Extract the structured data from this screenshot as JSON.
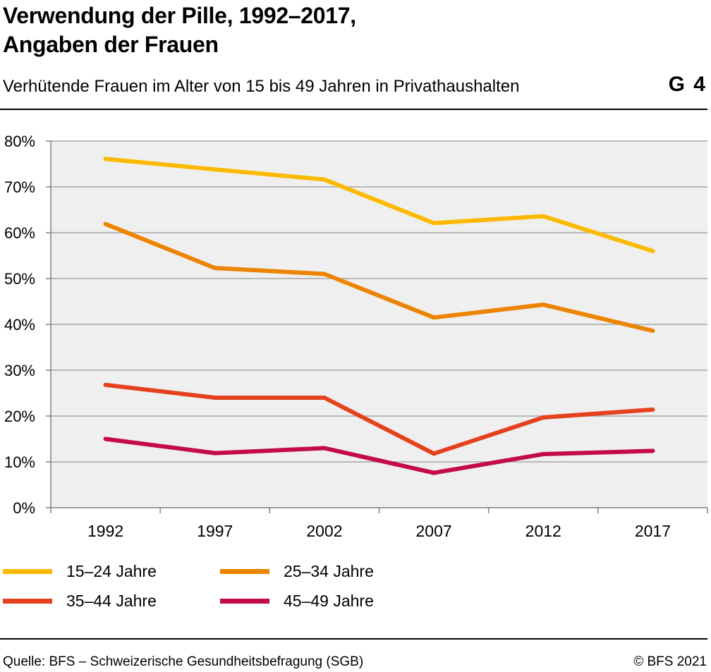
{
  "header": {
    "title_line1": "Verwendung der Pille, 1992–2017,",
    "title_line2": "Angaben der Frauen",
    "subtitle": "Verhütende Frauen im Alter von 15 bis 49 Jahren in Privathaushalten",
    "chart_id": "G 4"
  },
  "chart_data": {
    "type": "line",
    "x": [
      "1992",
      "1997",
      "2002",
      "2007",
      "2012",
      "2017"
    ],
    "ylim": [
      0,
      80
    ],
    "y_ticks": [
      "0%",
      "10%",
      "20%",
      "30%",
      "40%",
      "50%",
      "60%",
      "70%",
      "80%"
    ],
    "grid": true,
    "legend_position": "bottom",
    "series": [
      {
        "name": "15–24 Jahre",
        "color": "#FBBA00",
        "values": [
          76.1,
          73.8,
          71.6,
          62.1,
          63.6,
          56.0
        ]
      },
      {
        "name": "25–34 Jahre",
        "color": "#EC8400",
        "values": [
          61.9,
          52.3,
          51.0,
          41.5,
          44.3,
          38.6
        ]
      },
      {
        "name": "35–44 Jahre",
        "color": "#E6411E",
        "values": [
          26.8,
          24.0,
          24.0,
          11.8,
          19.7,
          21.4
        ]
      },
      {
        "name": "45–49 Jahre",
        "color": "#C30A4B",
        "values": [
          15.0,
          11.9,
          13.0,
          7.6,
          11.7,
          12.4
        ]
      }
    ]
  },
  "footer": {
    "source": "Quelle: BFS – Schweizerische Gesundheitsbefragung (SGB)",
    "copyright": "© BFS 2021"
  }
}
